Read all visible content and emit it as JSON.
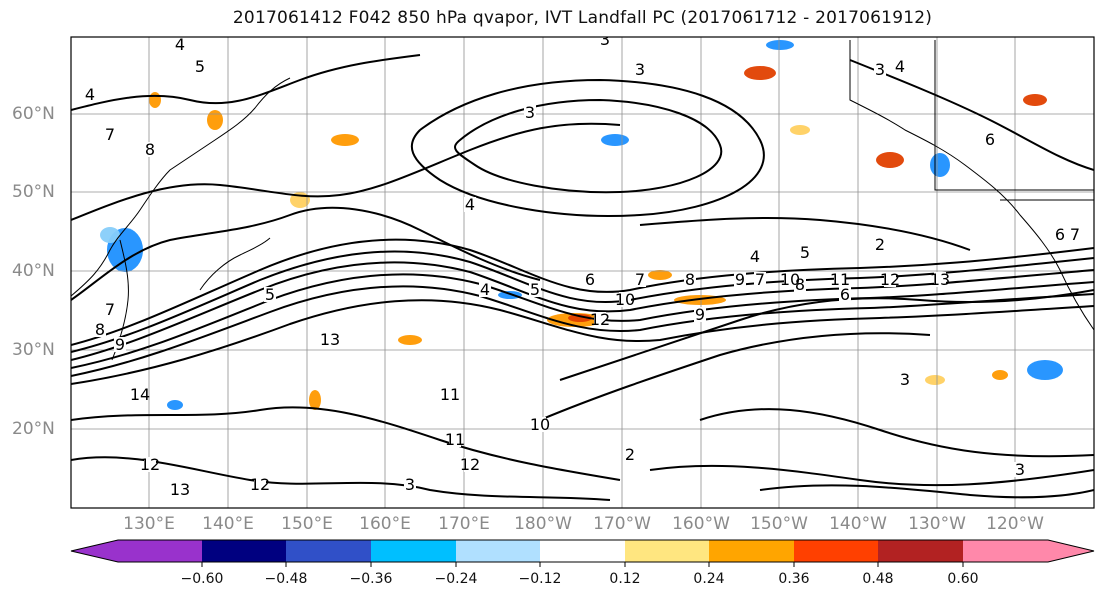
{
  "title": "2017061412 F042 850 hPa qvapor, IVT Landfall PC (2017061712 - 2017061912)",
  "map": {
    "projection": "equirectangular",
    "lon_range": [
      120,
      -110
    ],
    "lat_range": [
      10,
      70
    ],
    "gridlines": true,
    "coastlines": true
  },
  "lat_labels": [
    "60°N",
    "50°N",
    "40°N",
    "30°N",
    "20°N"
  ],
  "lon_labels": [
    "130°E",
    "140°E",
    "150°E",
    "160°E",
    "170°E",
    "180°W",
    "170°W",
    "160°W",
    "150°W",
    "140°W",
    "130°W",
    "120°W"
  ],
  "contour_labels": [
    "4",
    "5",
    "4",
    "7",
    "8",
    "3",
    "3",
    "3",
    "4",
    "3",
    "4",
    "6",
    "5",
    "7",
    "8",
    "9",
    "10",
    "12",
    "13",
    "11",
    "14",
    "12",
    "13",
    "12",
    "3",
    "4",
    "5",
    "6",
    "7",
    "8",
    "9",
    "10",
    "11",
    "12",
    "2",
    "3",
    "4",
    "5",
    "6",
    "7",
    "8",
    "9",
    "10",
    "11",
    "12",
    "13",
    "6",
    "7",
    "3",
    "2"
  ],
  "colorbar": {
    "ticks": [
      "−0.60",
      "−0.48",
      "−0.36",
      "−0.24",
      "−0.12",
      "0.12",
      "0.24",
      "0.36",
      "0.48",
      "0.60"
    ],
    "colors": [
      "#9932cc",
      "#000080",
      "#3050c8",
      "#00bfff",
      "#b0e0ff",
      "#ffffff",
      "#ffe680",
      "#ffa500",
      "#ff4000",
      "#b22222",
      "#ff88aa"
    ],
    "extend": "both"
  },
  "fill_colors": {
    "neg_strong": "#1e90ff",
    "neg_light": "#87cefa",
    "pos_light": "#ffd060",
    "pos_mid": "#ff9900",
    "pos_strong": "#e04000"
  }
}
